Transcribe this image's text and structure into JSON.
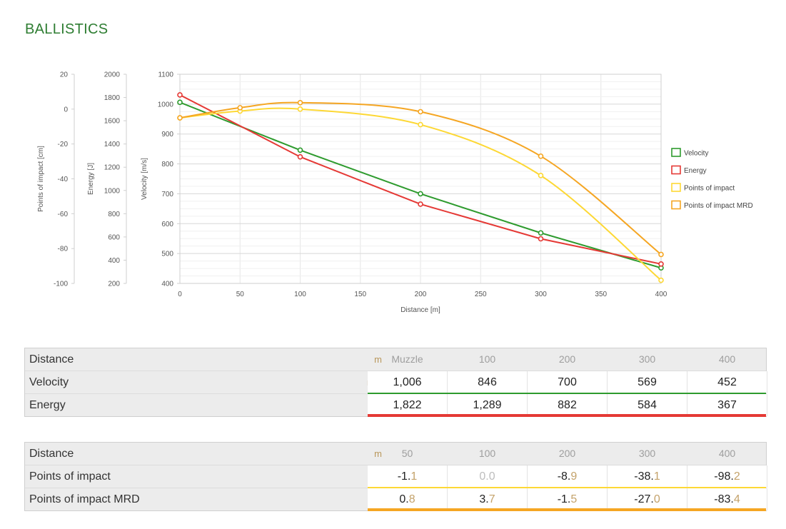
{
  "page": {
    "title": "BALLISTICS"
  },
  "chart_data": {
    "type": "line",
    "xlabel": "Distance [m]",
    "xlim": [
      0,
      400
    ],
    "xticks": [
      0,
      50,
      100,
      150,
      200,
      250,
      300,
      350,
      400
    ],
    "grid": true,
    "legend_position": "right",
    "axes": [
      {
        "id": "poi",
        "label": "Points of impact [cm]",
        "range": [
          -100,
          20
        ],
        "ticks": [
          20,
          0,
          -20,
          -40,
          -60,
          -80,
          -100
        ]
      },
      {
        "id": "energy",
        "label": "Energy [J]",
        "range": [
          200,
          2000
        ],
        "ticks": [
          2000,
          1800,
          1600,
          1400,
          1200,
          1000,
          800,
          600,
          400,
          200
        ]
      },
      {
        "id": "velocity",
        "label": "Velocity [m/s]",
        "range": [
          400,
          1100
        ],
        "ticks": [
          1100,
          1000,
          900,
          800,
          700,
          600,
          500,
          400
        ]
      }
    ],
    "series": [
      {
        "name": "Velocity",
        "axis": "velocity",
        "color": "#2e9b2e",
        "smooth": false,
        "x": [
          0,
          100,
          200,
          300,
          400
        ],
        "y": [
          1006,
          846,
          700,
          569,
          452
        ]
      },
      {
        "name": "Energy",
        "axis": "energy",
        "color": "#e53935",
        "smooth": false,
        "x": [
          0,
          100,
          200,
          300,
          400
        ],
        "y": [
          1822,
          1289,
          882,
          584,
          367
        ]
      },
      {
        "name": "Points of impact",
        "axis": "poi",
        "color": "#fdd835",
        "smooth": true,
        "x": [
          0,
          50,
          100,
          200,
          300,
          400
        ],
        "y": [
          -5,
          -1.1,
          0,
          -8.9,
          -38.1,
          -98.2
        ]
      },
      {
        "name": "Points of impact MRD",
        "axis": "poi",
        "color": "#f5a623",
        "smooth": true,
        "x": [
          0,
          50,
          100,
          200,
          300,
          400
        ],
        "y": [
          -5,
          0.8,
          3.7,
          -1.5,
          -27.0,
          -83.4
        ]
      }
    ]
  },
  "table1": {
    "rows": [
      {
        "label": "Distance",
        "unit": "m",
        "cells": [
          "Muzzle",
          "100",
          "200",
          "300",
          "400"
        ]
      },
      {
        "label": "Velocity",
        "unit": "m/s",
        "cells": [
          "1,006",
          "846",
          "700",
          "569",
          "452"
        ]
      },
      {
        "label": "Energy",
        "unit": "J",
        "cells": [
          "1,822",
          "1,289",
          "882",
          "584",
          "367"
        ]
      }
    ]
  },
  "table2": {
    "rows": [
      {
        "label": "Distance",
        "unit": "m",
        "cells": [
          "50",
          "100",
          "200",
          "300",
          "400"
        ]
      },
      {
        "label": "Points of impact",
        "unit": "cm",
        "cells": [
          {
            "int": "-1.",
            "dec": "1"
          },
          {
            "int": "0.",
            "dec": "0"
          },
          {
            "int": "-8.",
            "dec": "9"
          },
          {
            "int": "-38.",
            "dec": "1"
          },
          {
            "int": "-98.",
            "dec": "2"
          }
        ]
      },
      {
        "label": "Points of impact MRD",
        "unit": "cm",
        "cells": [
          {
            "int": "0.",
            "dec": "8"
          },
          {
            "int": "3.",
            "dec": "7"
          },
          {
            "int": "-1.",
            "dec": "5"
          },
          {
            "int": "-27.",
            "dec": "0"
          },
          {
            "int": "-83.",
            "dec": "4"
          }
        ]
      }
    ]
  }
}
